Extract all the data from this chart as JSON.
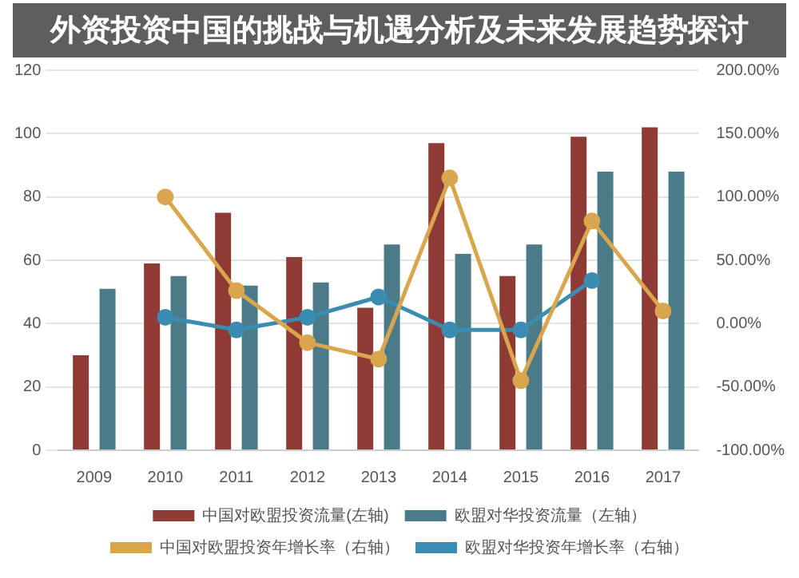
{
  "chart_data": {
    "type": "bar",
    "title": "外资投资中国的挑战与机遇分析及未来发展趋势探讨",
    "categories": [
      "2009",
      "2010",
      "2011",
      "2012",
      "2013",
      "2014",
      "2015",
      "2016",
      "2017"
    ],
    "series": [
      {
        "name": "中国对欧盟投资流量(左轴)",
        "color": "#8e3a35",
        "values": [
          30,
          59,
          75,
          61,
          45,
          97,
          55,
          99,
          102
        ]
      },
      {
        "name": "欧盟对华投资流量（左轴）",
        "color": "#4b7b88",
        "values": [
          51,
          55,
          52,
          53,
          65,
          62,
          65,
          88,
          88
        ]
      },
      {
        "name": "中国对欧盟投资年增长率（右轴）",
        "type": "line",
        "axis": "y2",
        "color": "#d9a64e",
        "values": [
          null,
          100,
          26,
          -15,
          -28,
          115,
          -45,
          81,
          10
        ]
      },
      {
        "name": "欧盟对华投资年增长率（右轴）",
        "type": "line",
        "axis": "y2",
        "color": "#3a8cb0",
        "values": [
          null,
          5,
          -5,
          5,
          21,
          -5,
          -5,
          34,
          null
        ]
      }
    ],
    "ylim": [
      0,
      120
    ],
    "yticks": [
      0,
      20,
      40,
      60,
      80,
      100,
      120
    ],
    "y2lim": [
      -100,
      200
    ],
    "y2ticks": [
      {
        "value": -100,
        "label": "-100.00%"
      },
      {
        "value": -50,
        "label": "-50.00%"
      },
      {
        "value": 0,
        "label": "0.00%"
      },
      {
        "value": 50,
        "label": "50.00%"
      },
      {
        "value": 100,
        "label": "100.00%"
      },
      {
        "value": 150,
        "label": "150.00%"
      },
      {
        "value": 200,
        "label": "200.00%"
      }
    ],
    "grid": "y",
    "legend": "bottom",
    "marker": "circle"
  }
}
